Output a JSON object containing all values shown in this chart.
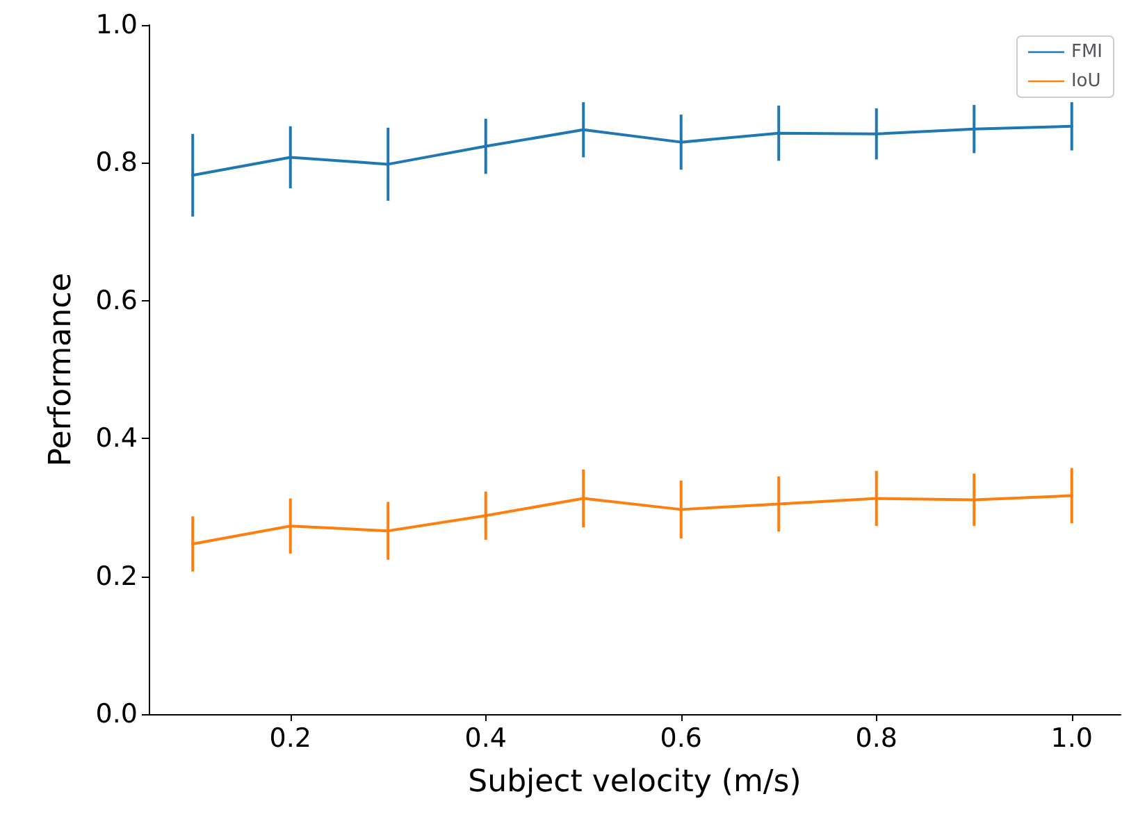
{
  "chart_data": {
    "type": "line",
    "xlabel": "Subject velocity (m/s)",
    "ylabel": "Performance",
    "x": [
      0.1,
      0.2,
      0.3,
      0.4,
      0.5,
      0.6,
      0.7,
      0.8,
      0.9,
      1.0
    ],
    "series": [
      {
        "name": "FMI",
        "color": "#1f77b4",
        "values": [
          0.782,
          0.808,
          0.798,
          0.824,
          0.848,
          0.83,
          0.843,
          0.842,
          0.849,
          0.853
        ],
        "errors": [
          0.06,
          0.045,
          0.053,
          0.04,
          0.04,
          0.04,
          0.04,
          0.037,
          0.035,
          0.035
        ]
      },
      {
        "name": "IoU",
        "color": "#ff7f0e",
        "values": [
          0.247,
          0.273,
          0.266,
          0.288,
          0.313,
          0.297,
          0.305,
          0.313,
          0.311,
          0.317
        ],
        "errors": [
          0.04,
          0.04,
          0.042,
          0.035,
          0.042,
          0.042,
          0.04,
          0.04,
          0.038,
          0.04
        ]
      }
    ],
    "xlim": [
      0.055,
      1.05
    ],
    "ylim": [
      0,
      1
    ],
    "xticks": [
      {
        "value": 0.2,
        "label": "0.2"
      },
      {
        "value": 0.4,
        "label": "0.4"
      },
      {
        "value": 0.6,
        "label": "0.6"
      },
      {
        "value": 0.8,
        "label": "0.8"
      },
      {
        "value": 1.0,
        "label": "1.0"
      }
    ],
    "yticks": [
      {
        "value": 0,
        "label": "0.0"
      },
      {
        "value": 0.2,
        "label": "0.2"
      },
      {
        "value": 0.4,
        "label": "0.4"
      },
      {
        "value": 0.6,
        "label": "0.6"
      },
      {
        "value": 0.8,
        "label": "0.8"
      },
      {
        "value": 1.0,
        "label": "1.0"
      }
    ],
    "grid": false,
    "legend": "top right",
    "marker": "none",
    "line_style": "solid"
  }
}
